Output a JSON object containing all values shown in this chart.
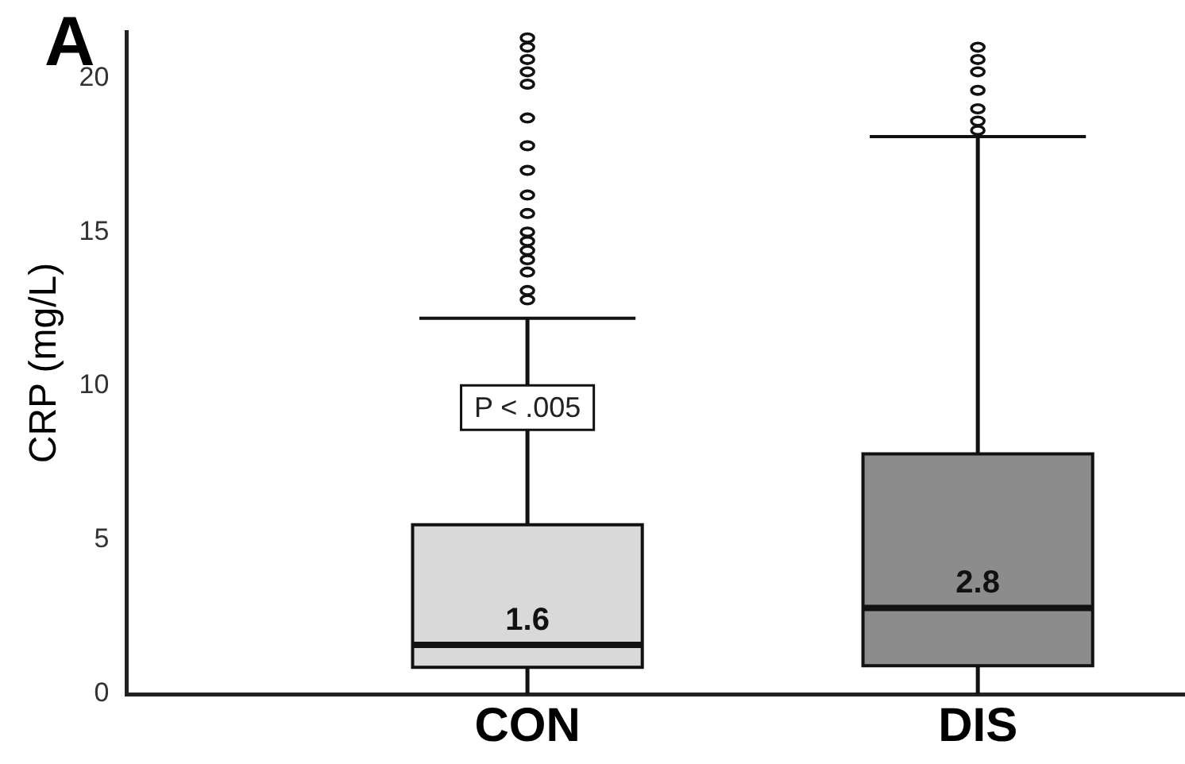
{
  "chart_data": {
    "type": "box",
    "title": "A",
    "ylabel": "CRP (mg/L)",
    "categories": [
      "CON",
      "DIS"
    ],
    "colors": [
      "#d9d9d9",
      "#8c8c8c"
    ],
    "boxes": [
      {
        "low": 0,
        "q1": 0.87,
        "median": 1.6,
        "q3": 5.5,
        "high": 12.2,
        "outliers": [
          12.8,
          13.1,
          13.7,
          14.1,
          14.4,
          14.7,
          15.0,
          15.6,
          16.2,
          17.0,
          17.8,
          18.7,
          19.8,
          20.2,
          20.6,
          21.0,
          21.3
        ]
      },
      {
        "low": 0,
        "q1": 0.92,
        "median": 2.8,
        "q3": 7.8,
        "high": 18.1,
        "outliers": [
          18.3,
          18.6,
          19.0,
          19.6,
          20.2,
          20.6,
          21.0
        ]
      }
    ],
    "ylim": [
      0,
      21.5
    ],
    "yticks": [
      0,
      5,
      10,
      15,
      20
    ],
    "grid": false,
    "legend": false,
    "annotations": [
      {
        "text": "P < .005",
        "x": "CON",
        "y": 9.3
      },
      {
        "text": "1.6",
        "x": "CON",
        "y": 1.6
      },
      {
        "text": "2.8",
        "x": "DIS",
        "y": 2.8
      }
    ]
  }
}
